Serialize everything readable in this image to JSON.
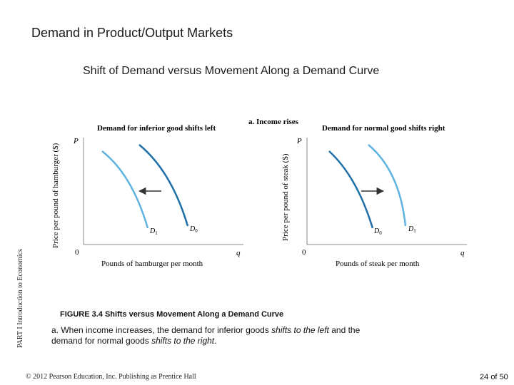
{
  "slide": {
    "title": "Demand in Product/Output Markets",
    "subtitle": "Shift of Demand versus Movement Along a Demand Curve",
    "side_label": "PART I Introduction to Economics",
    "copyright": "© 2012 Pearson Education, Inc. Publishing as Prentice Hall",
    "page_current": "24",
    "page_sep": "of",
    "page_total": "50"
  },
  "figure": {
    "panel_heading": "a. Income rises",
    "caption": {
      "bullet_icon": "target-icon",
      "title": "FIGURE 3.4  Shifts versus Movement Along a Demand Curve",
      "text_lead": "a. When income increases, the demand for inferior goods ",
      "text_em1": "shifts to the left",
      "text_mid": " and the demand for normal goods ",
      "text_em2": "shifts to the right",
      "text_end": "."
    },
    "colors": {
      "light_curve": "#5fb3e0",
      "dark_curve": "#1f6fa8",
      "axis": "#888888",
      "arrow": "#333333"
    }
  },
  "chart_data": [
    {
      "type": "line",
      "title": "Demand for inferior good shifts left",
      "xlabel": "Pounds of hamburger per month",
      "ylabel": "Price per pound of hamburger ($)",
      "x_axis_symbol": "q",
      "y_axis_symbol": "P",
      "origin_label": "0",
      "shift_direction": "left",
      "series": [
        {
          "name": "D0",
          "label_base": "D",
          "label_sub": "0",
          "role": "original"
        },
        {
          "name": "D1",
          "label_base": "D",
          "label_sub": "1",
          "role": "new"
        }
      ]
    },
    {
      "type": "line",
      "title": "Demand for normal good shifts right",
      "xlabel": "Pounds of steak per month",
      "ylabel": "Price per pound of steak ($)",
      "x_axis_symbol": "q",
      "y_axis_symbol": "P",
      "origin_label": "0",
      "shift_direction": "right",
      "series": [
        {
          "name": "D0",
          "label_base": "D",
          "label_sub": "0",
          "role": "original"
        },
        {
          "name": "D1",
          "label_base": "D",
          "label_sub": "1",
          "role": "new"
        }
      ]
    }
  ]
}
